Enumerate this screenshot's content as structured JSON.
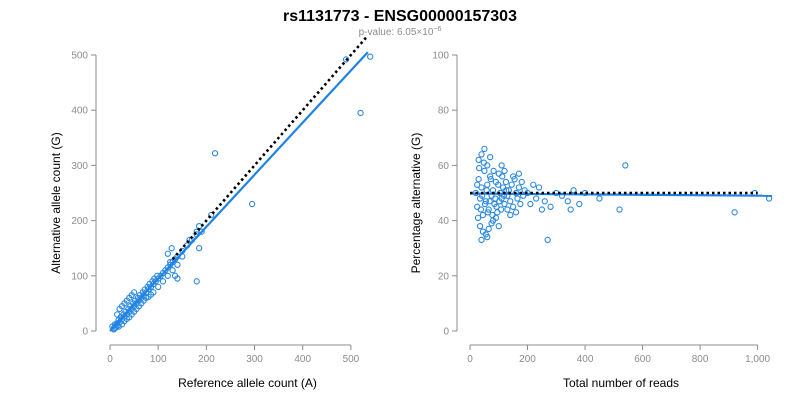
{
  "title": "rs1131773 - ENSG00000157303",
  "subtitle": {
    "prefix": "p-value: 6.05×10",
    "exponent": "−6"
  },
  "colors": {
    "point": "#2a88e0",
    "fit": "#1f82e6",
    "reference": "#000000",
    "axis": "#8c8c8c"
  },
  "chart_data": [
    {
      "type": "scatter",
      "title": "",
      "xlabel": "Reference allele count (A)",
      "ylabel": "Alternative allele count (G)",
      "xlim": [
        0,
        550
      ],
      "ylim": [
        0,
        500
      ],
      "xticks": [
        0,
        100,
        200,
        300,
        400,
        500
      ],
      "yticks": [
        0,
        100,
        200,
        300,
        400,
        500
      ],
      "xtick_labels": [
        "0",
        "100",
        "200",
        "300",
        "400",
        "500"
      ],
      "ytick_labels": [
        "0",
        "100",
        "200",
        "300",
        "400",
        "500"
      ],
      "grid": false,
      "reference_line": {
        "style": "dotted",
        "x": [
          130,
          535
        ],
        "y": [
          130,
          535
        ]
      },
      "fit_line": {
        "x": [
          0,
          535
        ],
        "y": [
          0,
          505
        ]
      },
      "points": [
        [
          5,
          8
        ],
        [
          8,
          5
        ],
        [
          10,
          12
        ],
        [
          12,
          10
        ],
        [
          15,
          14
        ],
        [
          18,
          20
        ],
        [
          20,
          16
        ],
        [
          22,
          25
        ],
        [
          25,
          22
        ],
        [
          28,
          30
        ],
        [
          30,
          26
        ],
        [
          32,
          35
        ],
        [
          35,
          30
        ],
        [
          38,
          40
        ],
        [
          40,
          35
        ],
        [
          42,
          45
        ],
        [
          45,
          40
        ],
        [
          48,
          50
        ],
        [
          50,
          45
        ],
        [
          52,
          55
        ],
        [
          55,
          50
        ],
        [
          58,
          60
        ],
        [
          60,
          56
        ],
        [
          62,
          65
        ],
        [
          65,
          60
        ],
        [
          68,
          70
        ],
        [
          70,
          65
        ],
        [
          72,
          75
        ],
        [
          75,
          70
        ],
        [
          78,
          80
        ],
        [
          80,
          76
        ],
        [
          82,
          85
        ],
        [
          85,
          80
        ],
        [
          88,
          90
        ],
        [
          90,
          85
        ],
        [
          92,
          95
        ],
        [
          95,
          90
        ],
        [
          98,
          100
        ],
        [
          100,
          95
        ],
        [
          105,
          100
        ],
        [
          110,
          105
        ],
        [
          115,
          110
        ],
        [
          120,
          115
        ],
        [
          125,
          120
        ],
        [
          130,
          125
        ],
        [
          135,
          130
        ],
        [
          140,
          135
        ],
        [
          150,
          145
        ],
        [
          160,
          155
        ],
        [
          170,
          165
        ],
        [
          180,
          175
        ],
        [
          190,
          180
        ],
        [
          15,
          30
        ],
        [
          20,
          40
        ],
        [
          25,
          45
        ],
        [
          30,
          50
        ],
        [
          35,
          55
        ],
        [
          40,
          60
        ],
        [
          45,
          65
        ],
        [
          50,
          70
        ],
        [
          18,
          8
        ],
        [
          25,
          12
        ],
        [
          30,
          18
        ],
        [
          35,
          22
        ],
        [
          40,
          25
        ],
        [
          45,
          30
        ],
        [
          50,
          35
        ],
        [
          55,
          40
        ],
        [
          60,
          45
        ],
        [
          65,
          50
        ],
        [
          70,
          55
        ],
        [
          75,
          60
        ],
        [
          80,
          62
        ],
        [
          85,
          66
        ],
        [
          90,
          70
        ],
        [
          100,
          80
        ],
        [
          110,
          90
        ],
        [
          120,
          100
        ],
        [
          130,
          110
        ],
        [
          140,
          120
        ],
        [
          125,
          125
        ],
        [
          128,
          150
        ],
        [
          120,
          140
        ],
        [
          135,
          100
        ],
        [
          140,
          95
        ],
        [
          150,
          135
        ],
        [
          165,
          165
        ],
        [
          180,
          90
        ],
        [
          185,
          150
        ],
        [
          180,
          180
        ],
        [
          185,
          190
        ],
        [
          210,
          210
        ],
        [
          218,
          322
        ],
        [
          295,
          230
        ],
        [
          490,
          492
        ],
        [
          520,
          395
        ],
        [
          540,
          497
        ],
        [
          8,
          3
        ],
        [
          12,
          6
        ],
        [
          16,
          10
        ]
      ]
    },
    {
      "type": "scatter",
      "title": "",
      "xlabel": "Total number of reads",
      "ylabel": "Percentage alternative (G)",
      "xlim": [
        0,
        1050
      ],
      "ylim": [
        0,
        100
      ],
      "xticks": [
        0,
        200,
        400,
        600,
        800,
        1000
      ],
      "yticks": [
        0,
        20,
        40,
        60,
        80,
        100
      ],
      "xtick_labels": [
        "0",
        "200",
        "400",
        "600",
        "800",
        "1,000"
      ],
      "ytick_labels": [
        "0",
        "20",
        "40",
        "60",
        "80",
        "100"
      ],
      "grid": false,
      "reference_line": {
        "style": "dotted",
        "x": [
          0,
          1000
        ],
        "y": [
          50,
          50
        ]
      },
      "fit_line": {
        "x": [
          0,
          1050
        ],
        "y": [
          49.8,
          49
        ]
      },
      "points": [
        [
          20,
          50
        ],
        [
          25,
          45
        ],
        [
          30,
          55
        ],
        [
          35,
          48
        ],
        [
          40,
          52
        ],
        [
          45,
          42
        ],
        [
          50,
          58
        ],
        [
          55,
          47
        ],
        [
          60,
          53
        ],
        [
          65,
          44
        ],
        [
          70,
          56
        ],
        [
          75,
          49
        ],
        [
          80,
          51
        ],
        [
          85,
          46
        ],
        [
          90,
          54
        ],
        [
          95,
          43
        ],
        [
          100,
          57
        ],
        [
          105,
          50
        ],
        [
          110,
          48
        ],
        [
          115,
          52
        ],
        [
          120,
          46
        ],
        [
          125,
          54
        ],
        [
          130,
          49
        ],
        [
          135,
          51
        ],
        [
          140,
          47
        ],
        [
          145,
          53
        ],
        [
          150,
          45
        ],
        [
          155,
          55
        ],
        [
          160,
          50
        ],
        [
          165,
          48
        ],
        [
          170,
          52
        ],
        [
          175,
          46
        ],
        [
          180,
          54
        ],
        [
          185,
          49
        ],
        [
          190,
          51
        ],
        [
          30,
          62
        ],
        [
          40,
          64
        ],
        [
          50,
          66
        ],
        [
          60,
          60
        ],
        [
          70,
          63
        ],
        [
          35,
          38
        ],
        [
          45,
          36
        ],
        [
          55,
          35
        ],
        [
          65,
          37
        ],
        [
          75,
          39
        ],
        [
          40,
          33
        ],
        [
          60,
          34
        ],
        [
          80,
          40
        ],
        [
          90,
          41
        ],
        [
          100,
          38
        ],
        [
          110,
          60
        ],
        [
          120,
          58
        ],
        [
          130,
          44
        ],
        [
          140,
          42
        ],
        [
          150,
          56
        ],
        [
          160,
          43
        ],
        [
          170,
          57
        ],
        [
          200,
          50
        ],
        [
          210,
          46
        ],
        [
          220,
          53
        ],
        [
          230,
          48
        ],
        [
          240,
          52
        ],
        [
          250,
          44
        ],
        [
          260,
          47
        ],
        [
          270,
          33
        ],
        [
          280,
          45
        ],
        [
          300,
          50
        ],
        [
          320,
          49
        ],
        [
          340,
          47
        ],
        [
          350,
          44
        ],
        [
          360,
          51
        ],
        [
          380,
          46
        ],
        [
          400,
          50
        ],
        [
          450,
          48
        ],
        [
          520,
          44
        ],
        [
          540,
          60
        ],
        [
          920,
          43
        ],
        [
          990,
          50
        ],
        [
          1040,
          48
        ],
        [
          25,
          53
        ],
        [
          28,
          41
        ],
        [
          32,
          59
        ],
        [
          38,
          44
        ],
        [
          42,
          49
        ],
        [
          48,
          61
        ],
        [
          52,
          46
        ],
        [
          58,
          51
        ],
        [
          62,
          43
        ],
        [
          68,
          47
        ],
        [
          72,
          55
        ],
        [
          78,
          42
        ],
        [
          82,
          58
        ],
        [
          88,
          48
        ],
        [
          92,
          45
        ],
        [
          98,
          53
        ],
        [
          102,
          47
        ],
        [
          108,
          44
        ],
        [
          112,
          56
        ],
        [
          118,
          49
        ],
        [
          126,
          51
        ]
      ]
    }
  ]
}
